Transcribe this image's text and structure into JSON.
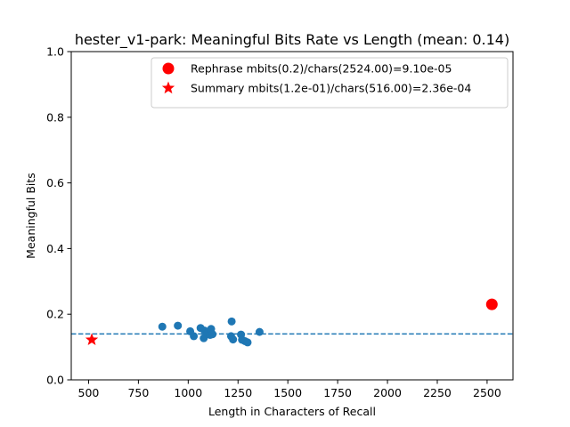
{
  "chart_data": {
    "type": "scatter",
    "title": "hester_v1-park: Meaningful Bits Rate vs Length (mean: 0.14)",
    "xlabel": "Length in Characters of Recall",
    "ylabel": "Meaningful Bits",
    "xlim": [
      413,
      2630
    ],
    "ylim": [
      0.0,
      1.0
    ],
    "xticks": [
      500,
      750,
      1000,
      1250,
      1500,
      1750,
      2000,
      2250,
      2500
    ],
    "xtick_labels": [
      "500",
      "750",
      "1000",
      "1250",
      "1500",
      "1750",
      "2000",
      "2250",
      "2500"
    ],
    "yticks": [
      0.0,
      0.2,
      0.4,
      0.6,
      0.8,
      1.0
    ],
    "ytick_labels": [
      "0.0",
      "0.2",
      "0.4",
      "0.6",
      "0.8",
      "1.0"
    ],
    "grid": false,
    "legend_position": "top-right",
    "mean_line": {
      "y": 0.14,
      "style": "dashed",
      "color": "#1f77b4"
    },
    "series": [
      {
        "marker": "circle",
        "color": "#1f77b4",
        "points": [
          {
            "x": 870,
            "y": 0.162
          },
          {
            "x": 948,
            "y": 0.165
          },
          {
            "x": 1010,
            "y": 0.148
          },
          {
            "x": 1028,
            "y": 0.133
          },
          {
            "x": 1062,
            "y": 0.158
          },
          {
            "x": 1078,
            "y": 0.127
          },
          {
            "x": 1082,
            "y": 0.15
          },
          {
            "x": 1095,
            "y": 0.143
          },
          {
            "x": 1110,
            "y": 0.137
          },
          {
            "x": 1115,
            "y": 0.155
          },
          {
            "x": 1122,
            "y": 0.139
          },
          {
            "x": 1218,
            "y": 0.178
          },
          {
            "x": 1215,
            "y": 0.133
          },
          {
            "x": 1225,
            "y": 0.123
          },
          {
            "x": 1265,
            "y": 0.138
          },
          {
            "x": 1270,
            "y": 0.122
          },
          {
            "x": 1285,
            "y": 0.118
          },
          {
            "x": 1298,
            "y": 0.114
          },
          {
            "x": 1358,
            "y": 0.146
          }
        ]
      },
      {
        "name": "Rephrase mbits(0.2)/chars(2524.00)=9.10e-05",
        "marker": "big-circle",
        "color": "#ff0000",
        "points": [
          {
            "x": 2524,
            "y": 0.23
          }
        ]
      },
      {
        "name": "Summary mbits(1.2e-01)/chars(516.00)=2.36e-04",
        "marker": "star",
        "color": "#ff0000",
        "points": [
          {
            "x": 516,
            "y": 0.122
          }
        ]
      }
    ]
  }
}
